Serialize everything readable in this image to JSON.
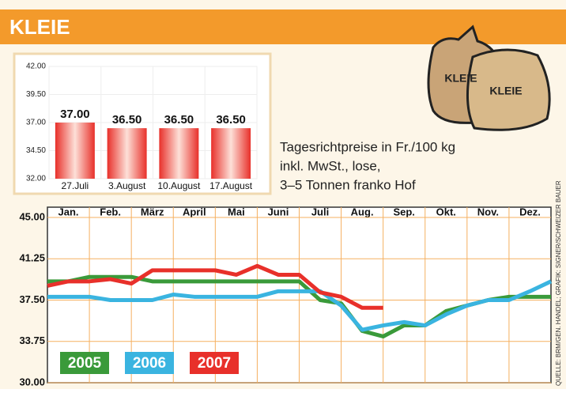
{
  "header": {
    "title": "KLEIE"
  },
  "note": [
    "Tagesrichtpreise in Fr./100 kg",
    "inkl. MwSt., lose,",
    "3–5 Tonnen franko Hof"
  ],
  "source": "QUELLE: BRM/GEN. HANDEL; GRAFIK: SIGNER/SCHWEIZER BAUER",
  "illustration_labels": [
    "KLEIE",
    "KLEIE"
  ],
  "chart_data": [
    {
      "type": "bar",
      "categories": [
        "27.Juli",
        "3.August",
        "10.August",
        "17.August"
      ],
      "values": [
        37,
        36.5,
        36.5,
        36.5
      ],
      "value_labels": [
        "37.00",
        "36.50",
        "36.50",
        "36.50"
      ],
      "color": "#e8302a",
      "ylim": [
        32,
        42
      ],
      "yticks": [
        {
          "value": 32,
          "label": "32.00"
        },
        {
          "value": 34.5,
          "label": "34.50"
        },
        {
          "value": 37,
          "label": "37.00"
        },
        {
          "value": 39.5,
          "label": "39.50"
        },
        {
          "value": 42,
          "label": "42.00"
        }
      ],
      "grid": true
    },
    {
      "type": "line",
      "month_labels": [
        "Jan.",
        "Feb.",
        "März",
        "April",
        "Mai",
        "Juni",
        "Juli",
        "Aug.",
        "Sep.",
        "Okt.",
        "Nov.",
        "Dez."
      ],
      "xlim": [
        0,
        12
      ],
      "x": [
        0,
        0.5,
        1,
        1.5,
        2,
        2.5,
        3,
        3.5,
        4,
        4.5,
        5,
        5.5,
        6,
        6.5,
        7,
        7.5,
        8,
        8.5,
        9,
        9.5,
        10,
        10.5,
        11,
        11.5,
        12
      ],
      "series": [
        {
          "name": "2005",
          "color": "#3a9a3a",
          "values": [
            39.2,
            39.2,
            39.6,
            39.6,
            39.6,
            39.2,
            39.2,
            39.2,
            39.2,
            39.2,
            39.2,
            39.2,
            39.2,
            37.5,
            37.2,
            34.7,
            34.2,
            35.2,
            35.2,
            36.5,
            37,
            37.5,
            37.8,
            37.8,
            37.8
          ]
        },
        {
          "name": "2006",
          "color": "#3ab4e0",
          "values": [
            37.8,
            37.8,
            37.8,
            37.5,
            37.5,
            37.5,
            38,
            37.8,
            37.8,
            37.8,
            37.8,
            38.3,
            38.3,
            38.3,
            37,
            34.8,
            35.2,
            35.5,
            35.2,
            36.2,
            37,
            37.5,
            37.5,
            38.3,
            39.2
          ]
        },
        {
          "name": "2007",
          "color": "#e8302a",
          "values": [
            38.8,
            39.2,
            39.2,
            39.4,
            39,
            40.2,
            40.2,
            40.2,
            40.2,
            39.8,
            40.6,
            39.8,
            39.8,
            38.2,
            37.8,
            36.8,
            36.8,
            null,
            null,
            null,
            null,
            null,
            null,
            null,
            null
          ]
        }
      ],
      "ylim": [
        30,
        45
      ],
      "yticks": [
        {
          "value": 30,
          "label": "30.00"
        },
        {
          "value": 33.75,
          "label": "33.75"
        },
        {
          "value": 37.5,
          "label": "37.50"
        },
        {
          "value": 41.25,
          "label": "41.25"
        },
        {
          "value": 45,
          "label": "45.00"
        }
      ],
      "grid": true
    }
  ]
}
